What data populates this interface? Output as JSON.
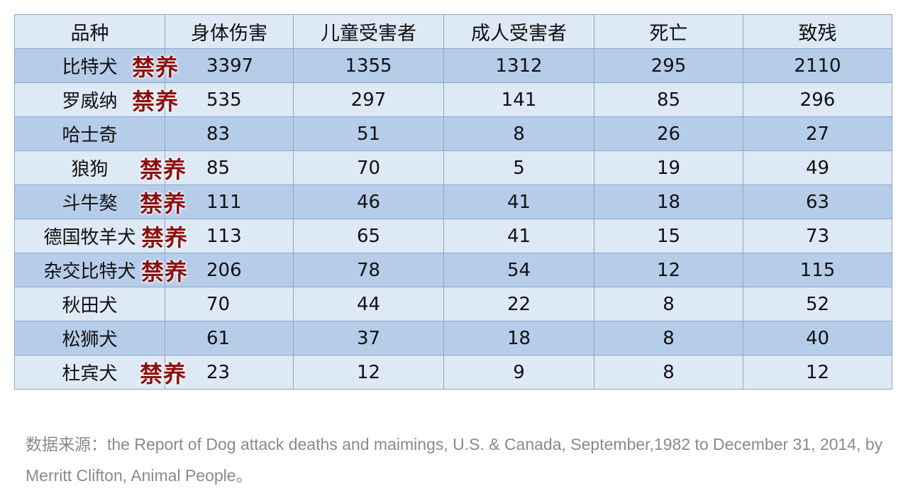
{
  "table": {
    "headers": [
      "品种",
      "身体伤害",
      "儿童受害者",
      "成人受害者",
      "死亡",
      "致残"
    ],
    "ban_label": "禁养",
    "rows": [
      {
        "breed": "比特犬",
        "banned": true,
        "values": [
          "3397",
          "1355",
          "1312",
          "295",
          "2110"
        ]
      },
      {
        "breed": "罗威纳",
        "banned": true,
        "values": [
          "535",
          "297",
          "141",
          "85",
          "296"
        ]
      },
      {
        "breed": "哈士奇",
        "banned": false,
        "values": [
          "83",
          "51",
          "8",
          "26",
          "27"
        ]
      },
      {
        "breed": "狼狗",
        "banned": true,
        "values": [
          "85",
          "70",
          "5",
          "19",
          "49"
        ]
      },
      {
        "breed": "斗牛獒",
        "banned": true,
        "values": [
          "111",
          "46",
          "41",
          "18",
          "63"
        ]
      },
      {
        "breed": "德国牧羊犬",
        "banned": true,
        "values": [
          "113",
          "65",
          "41",
          "15",
          "73"
        ]
      },
      {
        "breed": "杂交比特犬",
        "banned": true,
        "values": [
          "206",
          "78",
          "54",
          "12",
          "115"
        ]
      },
      {
        "breed": "秋田犬",
        "banned": false,
        "values": [
          "70",
          "44",
          "22",
          "8",
          "52"
        ]
      },
      {
        "breed": "松狮犬",
        "banned": false,
        "values": [
          "61",
          "37",
          "18",
          "8",
          "40"
        ]
      },
      {
        "breed": "杜宾犬",
        "banned": true,
        "values": [
          "23",
          "12",
          "9",
          "8",
          "12"
        ]
      }
    ]
  },
  "source_note": "数据来源：the Report of Dog attack deaths and maimings, U.S. & Canada, September,1982 to December 31, 2014, by Merritt Clifton, Animal People。",
  "colors": {
    "row_dark": "#b6cde9",
    "row_light": "#dde9f5",
    "ban_text": "#8c1111",
    "border": "#8aa8c8"
  }
}
